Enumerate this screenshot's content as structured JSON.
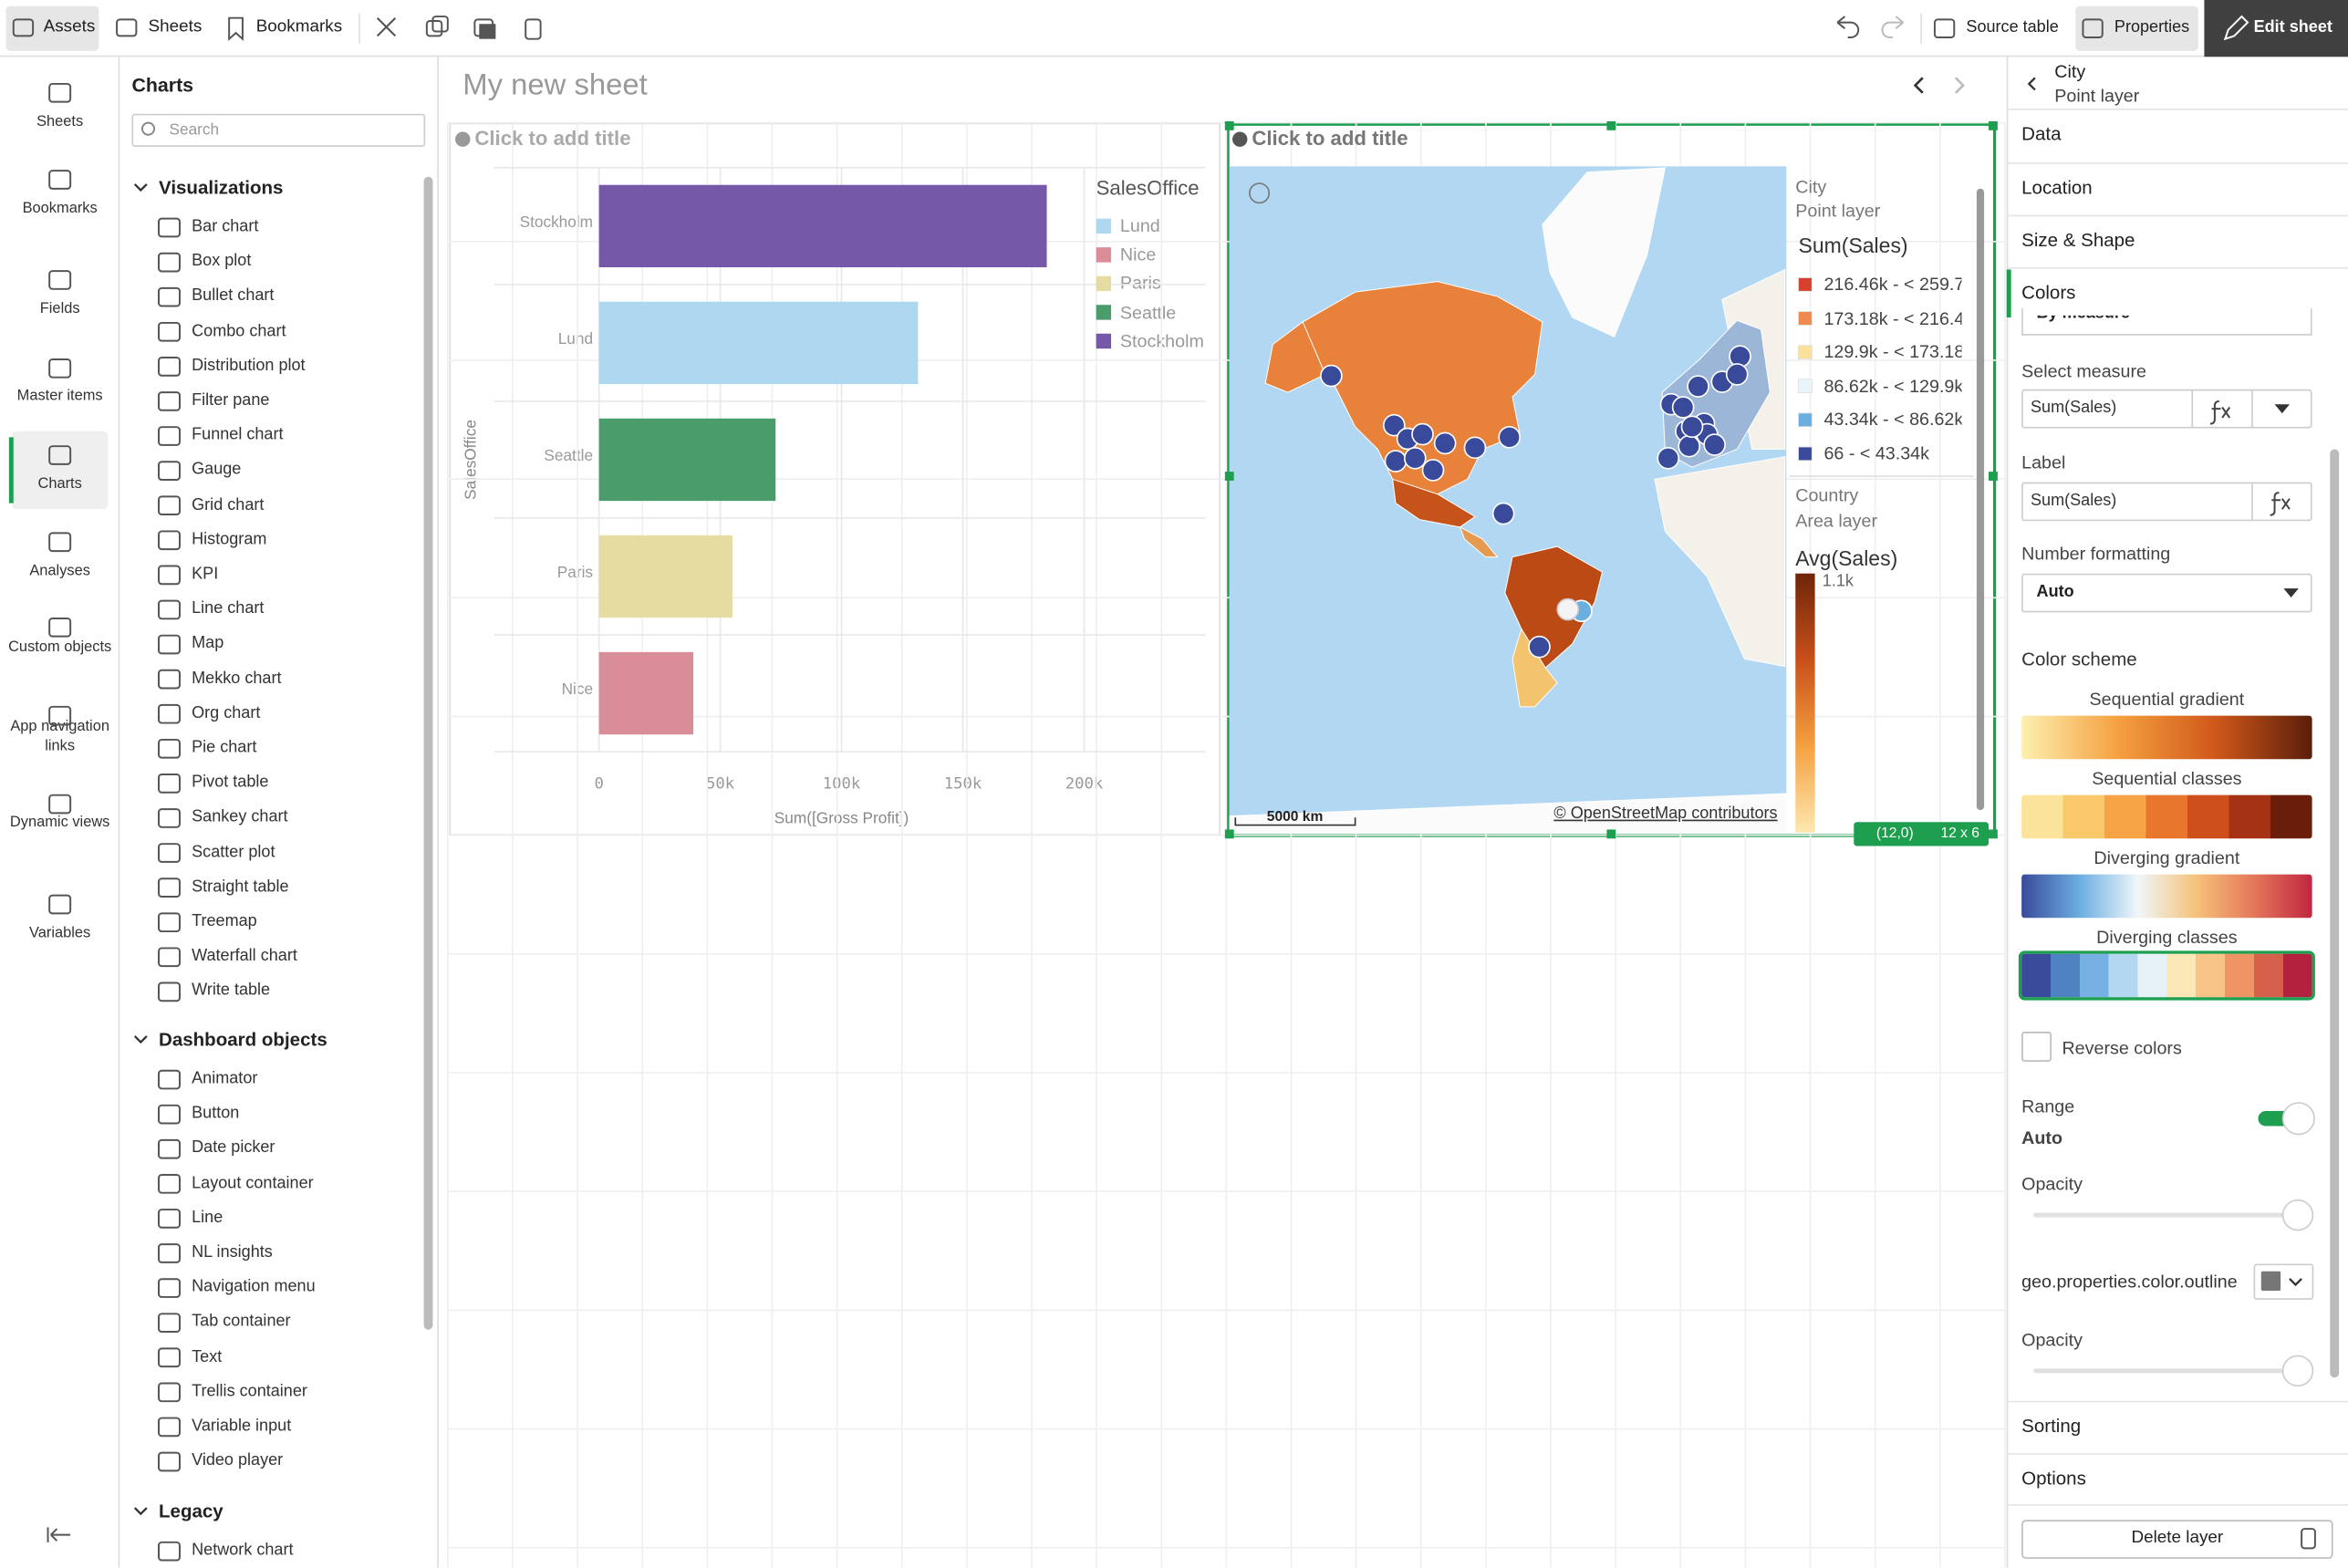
{
  "toolbar": {
    "assets": "Assets",
    "sheets": "Sheets",
    "bookmarks": "Bookmarks",
    "source_table": "Source table",
    "properties": "Properties",
    "edit_sheet": "Edit sheet"
  },
  "nav": [
    "Sheets",
    "Bookmarks",
    "Fields",
    "Master items",
    "Charts",
    "Analyses",
    "Custom objects",
    "App navigation links",
    "Dynamic views",
    "Variables"
  ],
  "assets": {
    "title": "Charts",
    "search": "Search",
    "groups": [
      {
        "name": "Visualizations",
        "items": [
          "Bar chart",
          "Box plot",
          "Bullet chart",
          "Combo chart",
          "Distribution plot",
          "Filter pane",
          "Funnel chart",
          "Gauge",
          "Grid chart",
          "Histogram",
          "KPI",
          "Line chart",
          "Map",
          "Mekko chart",
          "Org chart",
          "Pie chart",
          "Pivot table",
          "Sankey chart",
          "Scatter plot",
          "Straight table",
          "Treemap",
          "Waterfall chart",
          "Write table"
        ]
      },
      {
        "name": "Dashboard objects",
        "items": [
          "Animator",
          "Button",
          "Date picker",
          "Layout container",
          "Line",
          "NL insights",
          "Navigation menu",
          "Tab container",
          "Text",
          "Trellis container",
          "Variable input",
          "Video player"
        ]
      },
      {
        "name": "Legacy",
        "items": [
          "Network chart"
        ]
      }
    ]
  },
  "sheet_title": "My new sheet",
  "bar_chart": {
    "type": "bar",
    "title": "Click to add title",
    "y_label": "SalesOffice",
    "x_label": "Sum([Gross Profit])",
    "categories": [
      "Stockholm",
      "Lund",
      "Seattle",
      "Paris",
      "Nice"
    ],
    "values": [
      184600,
      131500,
      72800,
      55000,
      38900
    ],
    "colors": [
      "#7559a8",
      "#add8ef",
      "#4b9c6b",
      "#e6dca2",
      "#d98d99"
    ],
    "xlim": [
      0,
      200000
    ],
    "xticks": [
      0,
      {
        "value": 50000,
        "label": "50k"
      },
      {
        "value": 100000,
        "label": "100k"
      },
      {
        "value": 150000,
        "label": "150k"
      },
      {
        "value": 200000,
        "label": "200k"
      }
    ],
    "grid": true,
    "legend": {
      "title": "SalesOffice",
      "items": [
        {
          "name": "Lund",
          "color": "#add8ef"
        },
        {
          "name": "Nice",
          "color": "#d98d99"
        },
        {
          "name": "Paris",
          "color": "#e6dca2"
        },
        {
          "name": "Seattle",
          "color": "#4b9c6b"
        },
        {
          "name": "Stockholm",
          "color": "#7559a8"
        }
      ]
    }
  },
  "map": {
    "title": "Click to add title",
    "scale": "5000 km",
    "attribution": "© OpenStreetMap contributors",
    "legend": {
      "layer1": "City",
      "layer1_type": "Point layer",
      "measure1": "Sum(Sales)",
      "classes": [
        {
          "label": "216.46k - < 259.7",
          "color": "#d6402f"
        },
        {
          "label": "173.18k - < 216.4",
          "color": "#ef8a4f"
        },
        {
          "label": "129.9k - < 173.18",
          "color": "#fbe09a"
        },
        {
          "label": "86.62k - < 129.9k",
          "color": "#e9f4fb"
        },
        {
          "label": "43.34k - < 86.62k",
          "color": "#6bafe0"
        },
        {
          "label": "66 - < 43.34k",
          "color": "#3a4a9b"
        }
      ],
      "layer2": "Country",
      "layer2_type": "Area layer",
      "measure2": "Avg(Sales)",
      "max": "1.1k",
      "gradient": [
        "#fde8b0",
        "#f5a040",
        "#c8501a",
        "#6e2509"
      ]
    },
    "status": "(12,0)",
    "size": "12 x 6"
  },
  "properties": {
    "header": "City",
    "subheader": "Point layer",
    "sections": [
      "Data",
      "Location",
      "Size & Shape",
      "Colors"
    ],
    "by_measure": "By measure",
    "select_measure": "Select measure",
    "measure": "Sum(Sales)",
    "label": "Label",
    "label_value": "Sum(Sales)",
    "number_formatting": "Number formatting",
    "number_value": "Auto",
    "color_scheme": "Color scheme",
    "schemes": [
      {
        "name": "Sequential gradient",
        "gradient": true,
        "colors": [
          "#fdf0b0",
          "#f5a040",
          "#d0581a",
          "#5a1e0a"
        ]
      },
      {
        "name": "Sequential classes",
        "gradient": false,
        "colors": [
          "#fbe39b",
          "#f9c86a",
          "#f5a344",
          "#e9762d",
          "#cf4f1c",
          "#a53214",
          "#6a1d0b"
        ]
      },
      {
        "name": "Diverging gradient",
        "gradient": true,
        "colors": [
          "#3a4a9b",
          "#6baee0",
          "#f0f6fa",
          "#f6c27b",
          "#e4775a",
          "#c12640"
        ]
      },
      {
        "name": "Diverging classes",
        "gradient": false,
        "selected": true,
        "colors": [
          "#3a4a9b",
          "#4f82c3",
          "#77b0e2",
          "#b3d7f0",
          "#e6f1f8",
          "#fae7b5",
          "#f7c386",
          "#ef9465",
          "#d6604b",
          "#b4213f"
        ]
      }
    ],
    "reverse": "Reverse colors",
    "range": "Range",
    "range_value": "Auto",
    "opacity": "Opacity",
    "outline": "geo.properties.color.outline",
    "opacity2": "Opacity",
    "bottom": [
      "Sorting",
      "Options"
    ],
    "delete": "Delete layer"
  }
}
